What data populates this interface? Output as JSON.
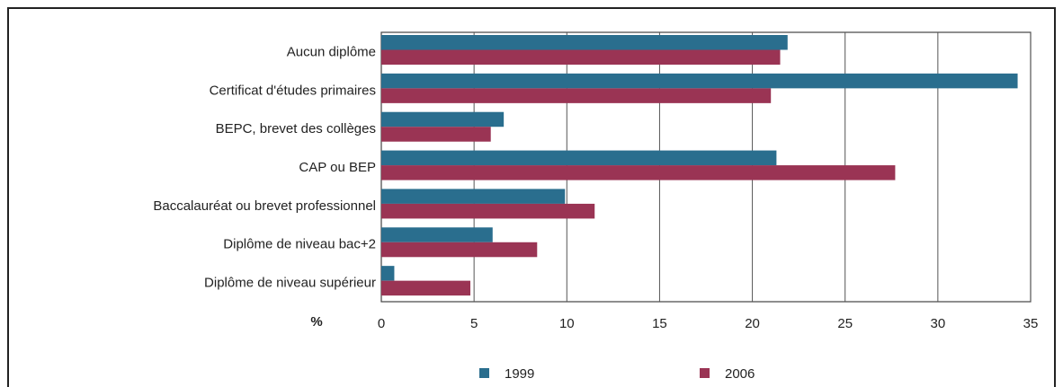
{
  "chart_data": {
    "type": "bar",
    "orientation": "horizontal",
    "categories": [
      "Aucun diplôme",
      "Certificat d'études primaires",
      "BEPC, brevet des collèges",
      "CAP ou BEP",
      "Baccalauréat ou brevet professionnel",
      "Diplôme de niveau bac+2",
      "Diplôme de niveau supérieur"
    ],
    "series": [
      {
        "name": "1999",
        "values": [
          21.9,
          34.3,
          6.6,
          21.3,
          9.9,
          6.0,
          0.7
        ]
      },
      {
        "name": "2006",
        "values": [
          21.5,
          21.0,
          5.9,
          27.7,
          11.5,
          8.4,
          4.8
        ]
      }
    ],
    "xlabel": "%",
    "xlim": [
      0,
      35
    ],
    "xticks": [
      0,
      5,
      10,
      15,
      20,
      25,
      30,
      35
    ],
    "grid": true,
    "legend_position": "bottom",
    "colors": {
      "1999": "#2a6e8e",
      "2006": "#9a3454"
    }
  }
}
